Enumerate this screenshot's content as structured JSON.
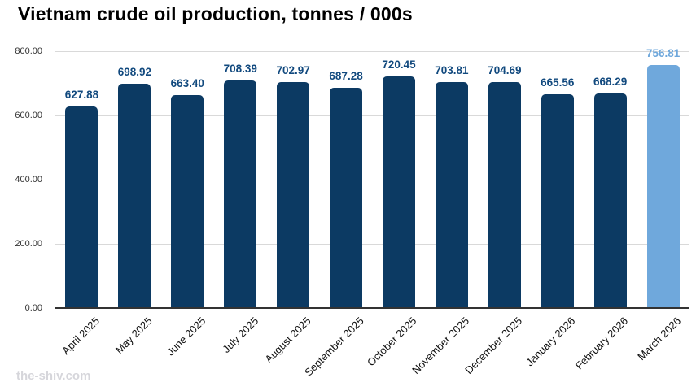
{
  "title": "Vietnam crude oil production, tonnes / 000s",
  "watermark": "the-shiv.com",
  "colors": {
    "bar": "#0c3a63",
    "bar_highlight": "#6fa8dc",
    "value_label": "#11497e",
    "value_label_highlight": "#6fa8dc",
    "gridline": "#d9d9d9",
    "axis_line": "#333333",
    "tick_label": "#333333"
  },
  "chart_data": {
    "type": "bar",
    "title": "Vietnam crude oil production, tonnes / 000s",
    "categories": [
      "April 2025",
      "May 2025",
      "June 2025",
      "July 2025",
      "August 2025",
      "September 2025",
      "October 2025",
      "November 2025",
      "December 2025",
      "January 2026",
      "February 2026",
      "March 2026"
    ],
    "values": [
      627.88,
      698.92,
      663.4,
      708.39,
      702.97,
      687.28,
      720.45,
      703.81,
      704.69,
      665.56,
      668.29,
      756.81
    ],
    "value_labels": [
      "627.88",
      "698.92",
      "663.40",
      "708.39",
      "702.97",
      "687.28",
      "720.45",
      "703.81",
      "704.69",
      "665.56",
      "668.29",
      "756.81"
    ],
    "highlight_index": 11,
    "xlabel": "",
    "ylabel": "",
    "ylim": [
      0,
      800
    ],
    "ytick_interval": 200,
    "yticks": [
      "800.00",
      "600.00",
      "400.00",
      "200.00",
      "0.00"
    ],
    "grid": true,
    "legend": "none"
  }
}
